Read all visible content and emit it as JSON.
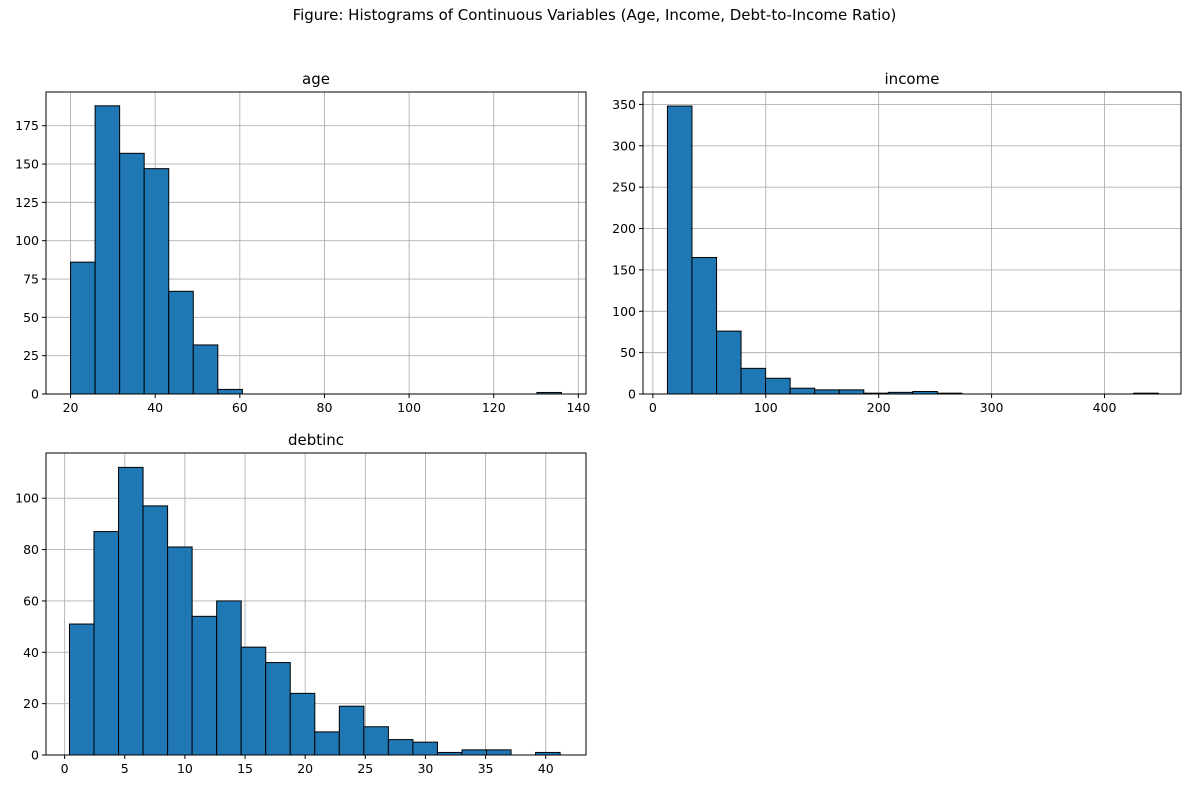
{
  "figure_title": "Figure: Histograms of Continuous Variables (Age, Income, Debt-to-Income Ratio)",
  "colors": {
    "bar_fill": "#1f77b4",
    "bar_edge": "#000000",
    "grid": "#b0b0b0"
  },
  "chart_data": [
    {
      "type": "bar",
      "title": "age",
      "xlabel": "",
      "ylabel": "",
      "xlim": [
        14.2,
        141.8
      ],
      "ylim": [
        0,
        197
      ],
      "grid": true,
      "xticks": [
        20,
        40,
        60,
        80,
        100,
        120,
        140
      ],
      "yticks": [
        0,
        25,
        50,
        75,
        100,
        125,
        150,
        175
      ],
      "bin_edges": [
        20,
        25.8,
        31.6,
        37.4,
        43.2,
        49,
        54.8,
        60.6,
        66.4,
        72.2,
        78,
        83.8,
        89.6,
        95.4,
        101.2,
        107,
        112.8,
        118.6,
        124.4,
        130.2,
        136
      ],
      "values": [
        86,
        188,
        157,
        147,
        67,
        32,
        3,
        0,
        0,
        0,
        0,
        0,
        0,
        0,
        0,
        0,
        0,
        0,
        0,
        1
      ]
    },
    {
      "type": "bar",
      "title": "income",
      "xlabel": "",
      "ylabel": "",
      "xlim": [
        -8.75,
        467.75
      ],
      "ylim": [
        0,
        365
      ],
      "grid": true,
      "xticks": [
        0,
        100,
        200,
        300,
        400
      ],
      "yticks": [
        0,
        50,
        100,
        150,
        200,
        250,
        300,
        350
      ],
      "bin_edges": [
        12.9,
        34.6,
        56.4,
        78.1,
        99.8,
        121.6,
        143.3,
        165.1,
        186.8,
        208.5,
        230.2,
        252,
        273.7,
        295.4,
        317.2,
        338.9,
        360.6,
        382.4,
        404.1,
        425.8,
        447.6
      ],
      "values": [
        348,
        165,
        76,
        31,
        19,
        7,
        5,
        5,
        1,
        2,
        3,
        1,
        0,
        0,
        0,
        0,
        0,
        0,
        0,
        1
      ]
    },
    {
      "type": "bar",
      "title": "debtinc",
      "xlabel": "",
      "ylabel": "",
      "xlim": [
        -1.55,
        43.35
      ],
      "ylim": [
        0,
        117.6
      ],
      "grid": true,
      "xticks": [
        0,
        5,
        10,
        15,
        20,
        25,
        30,
        35,
        40
      ],
      "yticks": [
        0,
        20,
        40,
        60,
        80,
        100
      ],
      "bin_edges": [
        0.4,
        2.44,
        4.48,
        6.52,
        8.56,
        10.6,
        12.64,
        14.68,
        16.72,
        18.76,
        20.8,
        22.84,
        24.88,
        26.92,
        28.96,
        31,
        33.04,
        35.08,
        37.12,
        39.16,
        41.2
      ],
      "values": [
        51,
        87,
        112,
        97,
        81,
        54,
        60,
        42,
        36,
        24,
        9,
        19,
        11,
        6,
        5,
        1,
        2,
        2,
        0,
        1
      ]
    }
  ]
}
